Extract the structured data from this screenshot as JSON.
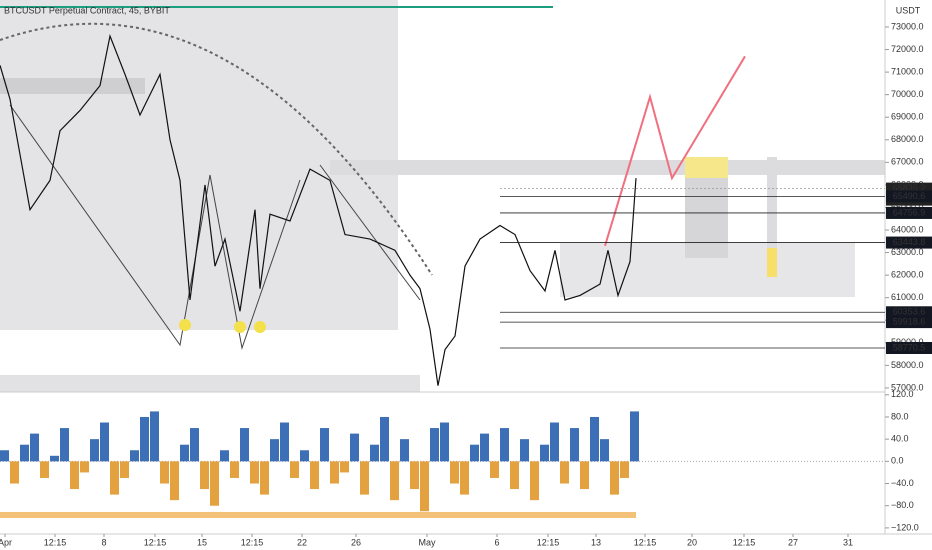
{
  "chart_data": [
    {
      "type": "line",
      "title": "BTCUSDT Perpetual Contract, 45, BYBIT",
      "currency": "USDT",
      "countdown": "40:14",
      "color": "#111111",
      "x": [
        0,
        10,
        30,
        50,
        60,
        80,
        100,
        110,
        125,
        140,
        160,
        170,
        180,
        190,
        205,
        215,
        225,
        240,
        255,
        260,
        270,
        290,
        310,
        330,
        345,
        370,
        395,
        410,
        420,
        430,
        438,
        445,
        455,
        465,
        480,
        500,
        515,
        530,
        545,
        555,
        565,
        580,
        600,
        608,
        618,
        630,
        636
      ],
      "values": [
        71300,
        69800,
        64900,
        66200,
        68400,
        69300,
        70400,
        72600,
        70900,
        69100,
        70900,
        68000,
        66200,
        60900,
        66000,
        62400,
        63600,
        60400,
        64900,
        61400,
        64700,
        64400,
        66700,
        66200,
        63800,
        63600,
        63100,
        62000,
        61400,
        59600,
        57100,
        58700,
        59300,
        62400,
        63600,
        64200,
        63800,
        62200,
        61300,
        63100,
        60900,
        61100,
        61600,
        63100,
        61100,
        62600,
        66300
      ],
      "projection": {
        "color": "#f07080",
        "x": [
          605,
          650,
          672,
          745
        ],
        "values": [
          63300,
          69900,
          66300,
          71700
        ]
      },
      "price_lines": [
        65835.2,
        65490.6,
        64756.9,
        63443.8,
        60353.6,
        59918.6,
        58770.5
      ],
      "xlim": [
        0,
        885
      ],
      "ylim": [
        56820,
        73930
      ],
      "yticks": [
        {
          "value": 57000,
          "label": "57000.0"
        },
        {
          "value": 58000,
          "label": "58000.0"
        },
        {
          "value": 59000,
          "label": "59000.0"
        },
        {
          "value": 60000,
          "label": "60000.0"
        },
        {
          "value": 61000,
          "label": "61000.0"
        },
        {
          "value": 62000,
          "label": "62000.0"
        },
        {
          "value": 63000,
          "label": "63000.0"
        },
        {
          "value": 64000,
          "label": "64000.0"
        },
        {
          "value": 65000,
          "label": "65000.0"
        },
        {
          "value": 66000,
          "label": "66000.0"
        },
        {
          "value": 67000,
          "label": "67000.0"
        },
        {
          "value": 68000,
          "label": "68000.0"
        },
        {
          "value": 69000,
          "label": "69000.0"
        },
        {
          "value": 70000,
          "label": "70000.0"
        },
        {
          "value": 71000,
          "label": "71000.0"
        },
        {
          "value": 72000,
          "label": "72000.0"
        },
        {
          "value": 73000,
          "label": "73000.0"
        }
      ],
      "xticks": [
        {
          "value": 5,
          "label": "Apr"
        },
        {
          "value": 55,
          "label": "12:15"
        },
        {
          "value": 104,
          "label": "8"
        },
        {
          "value": 155,
          "label": "12:15"
        },
        {
          "value": 202,
          "label": "15"
        },
        {
          "value": 252,
          "label": "12:15"
        },
        {
          "value": 302,
          "label": "22"
        },
        {
          "value": 356,
          "label": "26"
        },
        {
          "value": 427,
          "label": "May"
        },
        {
          "value": 497,
          "label": "6"
        },
        {
          "value": 548,
          "label": "12:15"
        },
        {
          "value": 596,
          "label": "13"
        },
        {
          "value": 645,
          "label": "12:15"
        },
        {
          "value": 692,
          "label": "20"
        },
        {
          "value": 744,
          "label": "12:15"
        },
        {
          "value": 793,
          "label": "27"
        },
        {
          "value": 848,
          "label": "31"
        }
      ]
    },
    {
      "type": "bar",
      "color": "#3d6fb6",
      "negative_color": "#e3a23f",
      "x": [
        0,
        10,
        20,
        30,
        40,
        50,
        60,
        70,
        80,
        90,
        100,
        110,
        120,
        130,
        140,
        150,
        160,
        170,
        180,
        190,
        200,
        210,
        220,
        230,
        240,
        250,
        260,
        270,
        280,
        290,
        300,
        310,
        320,
        330,
        340,
        350,
        360,
        370,
        380,
        390,
        400,
        410,
        420,
        430,
        440,
        450,
        460,
        470,
        480,
        490,
        500,
        510,
        520,
        530,
        540,
        550,
        560,
        570,
        580,
        590,
        600,
        610,
        620,
        630
      ],
      "values": [
        20,
        -40,
        30,
        50,
        -30,
        10,
        60,
        -50,
        -20,
        40,
        70,
        -60,
        -30,
        20,
        80,
        90,
        -40,
        -70,
        30,
        60,
        -50,
        -80,
        20,
        -30,
        60,
        -40,
        -60,
        40,
        70,
        -30,
        20,
        -50,
        60,
        -40,
        -20,
        50,
        -60,
        30,
        80,
        -70,
        40,
        -50,
        -90,
        60,
        70,
        -40,
        -60,
        30,
        50,
        -30,
        60,
        -50,
        40,
        -70,
        30,
        70,
        -40,
        60,
        -50,
        80,
        40,
        -60,
        -30,
        90
      ],
      "xlim": [
        0,
        885
      ],
      "ylim": [
        -131,
        125
      ],
      "yticks": [
        {
          "value": 120,
          "label": "120.0"
        },
        {
          "value": 80,
          "label": "80.0"
        },
        {
          "value": 40,
          "label": "40.0"
        },
        {
          "value": 0,
          "label": "0.0"
        },
        {
          "value": -40,
          "label": "−40.0"
        },
        {
          "value": -80,
          "label": "−80.0"
        },
        {
          "value": -120,
          "label": "−120.0"
        }
      ]
    }
  ]
}
